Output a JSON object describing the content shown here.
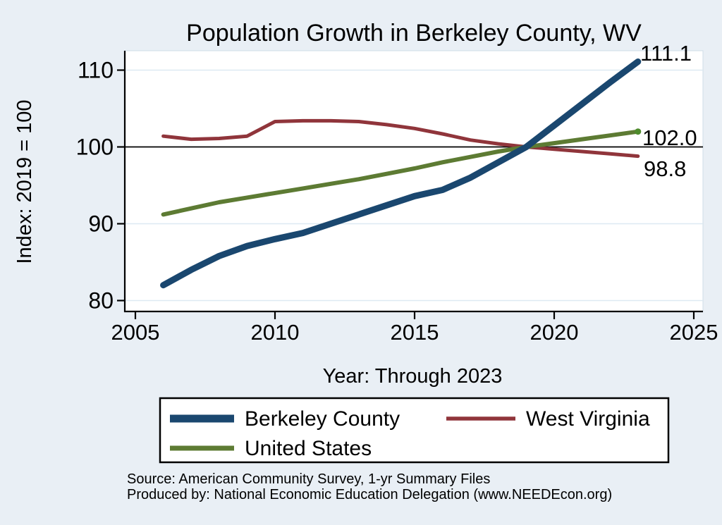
{
  "title": "Population Growth in Berkeley County, WV",
  "colors": {
    "background": "#e9eff5",
    "plot_background": "#ffffff",
    "grid": "#dde9f2",
    "axis": "#000000",
    "reference_line": "#000000",
    "title": "#1e3c6e",
    "berkeley_blue": "#1a476f",
    "west_virginia_red": "#90353b",
    "united_states_green": "#5d7b33",
    "end_marker_green": "#4e8b2c"
  },
  "chart_data": {
    "type": "line",
    "title": "Population Growth in Berkeley County, WV",
    "xlabel": "Year: Through 2023",
    "ylabel": "Index: 2019 = 100",
    "x": [
      2006,
      2007,
      2008,
      2009,
      2010,
      2011,
      2012,
      2013,
      2014,
      2015,
      2016,
      2017,
      2018,
      2019,
      2020,
      2021,
      2022,
      2023
    ],
    "series": [
      {
        "name": "Berkeley  County",
        "color": "#1a476f",
        "line_width": 9,
        "values": [
          82.0,
          84.0,
          85.8,
          87.1,
          88.0,
          88.8,
          90.0,
          91.2,
          92.4,
          93.6,
          94.4,
          96.0,
          98.0,
          100.0,
          102.8,
          105.6,
          108.4,
          111.1
        ],
        "end_label": "111.1"
      },
      {
        "name": "West Virginia",
        "color": "#90353b",
        "line_width": 5,
        "values": [
          101.4,
          101.0,
          101.1,
          101.4,
          103.3,
          103.4,
          103.4,
          103.3,
          102.9,
          102.4,
          101.7,
          100.9,
          100.4,
          100.0,
          99.7,
          99.4,
          99.1,
          98.8
        ],
        "end_label": "98.8"
      },
      {
        "name": "United States",
        "color": "#5d7b33",
        "line_width": 6,
        "values": [
          91.2,
          92.0,
          92.8,
          93.4,
          94.0,
          94.6,
          95.2,
          95.8,
          96.5,
          97.2,
          98.0,
          98.7,
          99.4,
          100.0,
          100.5,
          101.0,
          101.5,
          102.0
        ],
        "end_label": "102.0",
        "end_marker": true
      }
    ],
    "x_ticks": [
      2005,
      2010,
      2015,
      2020,
      2025
    ],
    "y_ticks": [
      80,
      90,
      100,
      110
    ],
    "xlim": [
      2004.6,
      2025.3
    ],
    "ylim": [
      78.6,
      112.5
    ],
    "reference_line_y": 100,
    "grid": true,
    "legend_position": "bottom"
  },
  "source": {
    "line1": "Source: American Community Survey, 1-yr Summary Files",
    "line2": "Produced by: National Economic Education Delegation (www.NEEDEcon.org)"
  }
}
